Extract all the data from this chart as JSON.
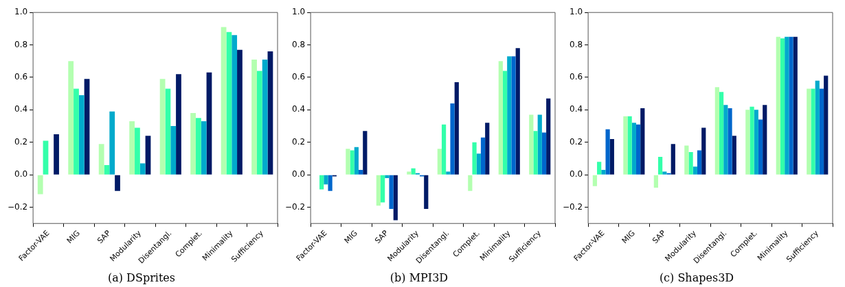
{
  "chart_data": [
    {
      "type": "bar",
      "title": "(a) DSprites",
      "categories": [
        "Factor-VAE",
        "MIG",
        "SAP",
        "Modularity",
        "Disentangl.",
        "Complet.",
        "Minimality",
        "Sufficiency"
      ],
      "ylim": [
        -0.3,
        1.0
      ],
      "yticks": [
        {
          "value": -0.2,
          "label": "−0.2"
        },
        {
          "value": 0,
          "label": "0.0"
        },
        {
          "value": 0.2,
          "label": "0.2"
        },
        {
          "value": 0.4,
          "label": "0.4"
        },
        {
          "value": 0.6,
          "label": "0.6"
        },
        {
          "value": 0.8,
          "label": "0.8"
        },
        {
          "value": 1.0,
          "label": "1.0"
        }
      ],
      "series": [
        {
          "color": "#b3ffb0",
          "values": [
            -0.12,
            0.7,
            0.19,
            0.33,
            0.59,
            0.38,
            0.91,
            0.71
          ]
        },
        {
          "color": "#33ffaa",
          "values": [
            0.21,
            0.53,
            0.06,
            0.29,
            0.53,
            0.35,
            0.88,
            0.64
          ]
        },
        {
          "color": "#00aacc",
          "values": [
            0.0,
            0.49,
            0.39,
            0.07,
            0.3,
            0.33,
            0.86,
            0.71
          ]
        },
        {
          "color": "#001a66",
          "values": [
            0.25,
            0.59,
            -0.1,
            0.24,
            0.62,
            0.63,
            0.77,
            0.76
          ]
        }
      ]
    },
    {
      "type": "bar",
      "title": "(b) MPI3D",
      "categories": [
        "Factor-VAE",
        "MIG",
        "SAP",
        "Modularity",
        "Disentangl.",
        "Complet.",
        "Minimality",
        "Sufficiency"
      ],
      "ylim": [
        -0.3,
        1.0
      ],
      "yticks": [
        {
          "value": -0.2,
          "label": "−0.2"
        },
        {
          "value": 0,
          "label": "0.0"
        },
        {
          "value": 0.2,
          "label": "0.2"
        },
        {
          "value": 0.4,
          "label": "0.4"
        },
        {
          "value": 0.6,
          "label": "0.6"
        },
        {
          "value": 0.8,
          "label": "0.8"
        },
        {
          "value": 1.0,
          "label": "1.0"
        }
      ],
      "series": [
        {
          "color": "#b3ffb0",
          "values": [
            0.0,
            0.16,
            -0.19,
            0.02,
            0.16,
            -0.1,
            0.7,
            0.37
          ]
        },
        {
          "color": "#33ffaa",
          "values": [
            -0.09,
            0.15,
            -0.17,
            0.04,
            0.31,
            0.2,
            0.64,
            0.27
          ]
        },
        {
          "color": "#00aacc",
          "values": [
            -0.06,
            0.17,
            -0.02,
            0.01,
            0.02,
            0.13,
            0.73,
            0.37
          ]
        },
        {
          "color": "#0066cc",
          "values": [
            -0.1,
            0.03,
            -0.21,
            -0.01,
            0.44,
            0.23,
            0.73,
            0.26
          ]
        },
        {
          "color": "#001a66",
          "values": [
            -0.01,
            0.27,
            -0.28,
            -0.21,
            0.57,
            0.32,
            0.78,
            0.47
          ]
        }
      ]
    },
    {
      "type": "bar",
      "title": "(c) Shapes3D",
      "categories": [
        "Factor-VAE",
        "MIG",
        "SAP",
        "Modularity",
        "Disentangl.",
        "Complet.",
        "Minimality",
        "Sufficiency"
      ],
      "ylim": [
        -0.3,
        1.0
      ],
      "yticks": [
        {
          "value": -0.2,
          "label": "−0.2"
        },
        {
          "value": 0,
          "label": "0.0"
        },
        {
          "value": 0.2,
          "label": "0.2"
        },
        {
          "value": 0.4,
          "label": "0.4"
        },
        {
          "value": 0.6,
          "label": "0.6"
        },
        {
          "value": 0.8,
          "label": "0.8"
        },
        {
          "value": 1.0,
          "label": "1.0"
        }
      ],
      "series": [
        {
          "color": "#b3ffb0",
          "values": [
            -0.07,
            0.36,
            -0.08,
            0.18,
            0.54,
            0.4,
            0.85,
            0.53
          ]
        },
        {
          "color": "#33ffaa",
          "values": [
            0.08,
            0.36,
            0.11,
            0.14,
            0.51,
            0.42,
            0.84,
            0.53
          ]
        },
        {
          "color": "#00aacc",
          "values": [
            0.03,
            0.32,
            0.02,
            0.05,
            0.43,
            0.4,
            0.85,
            0.58
          ]
        },
        {
          "color": "#0066cc",
          "values": [
            0.28,
            0.31,
            0.01,
            0.15,
            0.41,
            0.34,
            0.85,
            0.53
          ]
        },
        {
          "color": "#001a66",
          "values": [
            0.22,
            0.41,
            0.19,
            0.29,
            0.24,
            0.43,
            0.85,
            0.61
          ]
        }
      ]
    }
  ]
}
